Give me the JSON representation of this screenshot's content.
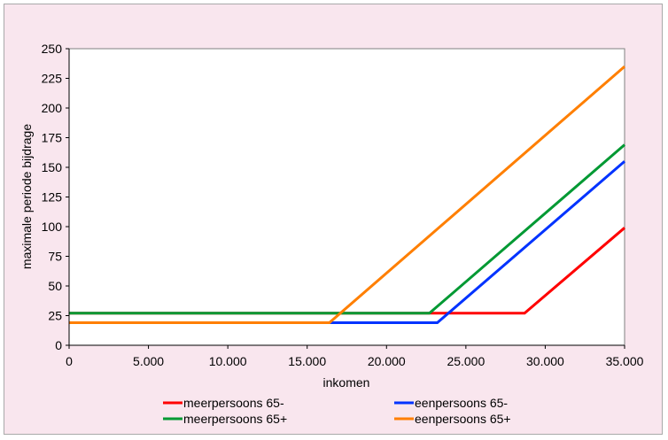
{
  "chart_data": {
    "type": "line",
    "title": "",
    "xlabel": "inkomen",
    "ylabel": "maximale periode bijdrage",
    "xlim": [
      0,
      35000
    ],
    "ylim": [
      0,
      250
    ],
    "x_ticks": [
      0,
      5000,
      10000,
      15000,
      20000,
      25000,
      30000,
      35000
    ],
    "x_tick_labels": [
      "0",
      "5.000",
      "10.000",
      "15.000",
      "20.000",
      "25.000",
      "30.000",
      "35.000"
    ],
    "y_ticks": [
      0,
      25,
      50,
      75,
      100,
      125,
      150,
      175,
      200,
      225,
      250
    ],
    "y_tick_labels": [
      "0",
      "25",
      "50",
      "75",
      "100",
      "125",
      "150",
      "175",
      "200",
      "225",
      "250"
    ],
    "grid": false,
    "legend_position": "bottom",
    "series": [
      {
        "name": "meerpersoons 65-",
        "color": "#ff0000",
        "points": [
          [
            0,
            27
          ],
          [
            28700,
            27
          ],
          [
            35000,
            99
          ]
        ]
      },
      {
        "name": "eenpersoons 65-",
        "color": "#0033ff",
        "points": [
          [
            0,
            19
          ],
          [
            23200,
            19
          ],
          [
            35000,
            155
          ]
        ]
      },
      {
        "name": "meerpersoons 65+",
        "color": "#009933",
        "points": [
          [
            0,
            27
          ],
          [
            22700,
            27
          ],
          [
            35000,
            169
          ]
        ]
      },
      {
        "name": "eenpersoons 65+",
        "color": "#ff7f00",
        "points": [
          [
            0,
            19
          ],
          [
            16400,
            19
          ],
          [
            35000,
            235
          ]
        ]
      }
    ]
  }
}
